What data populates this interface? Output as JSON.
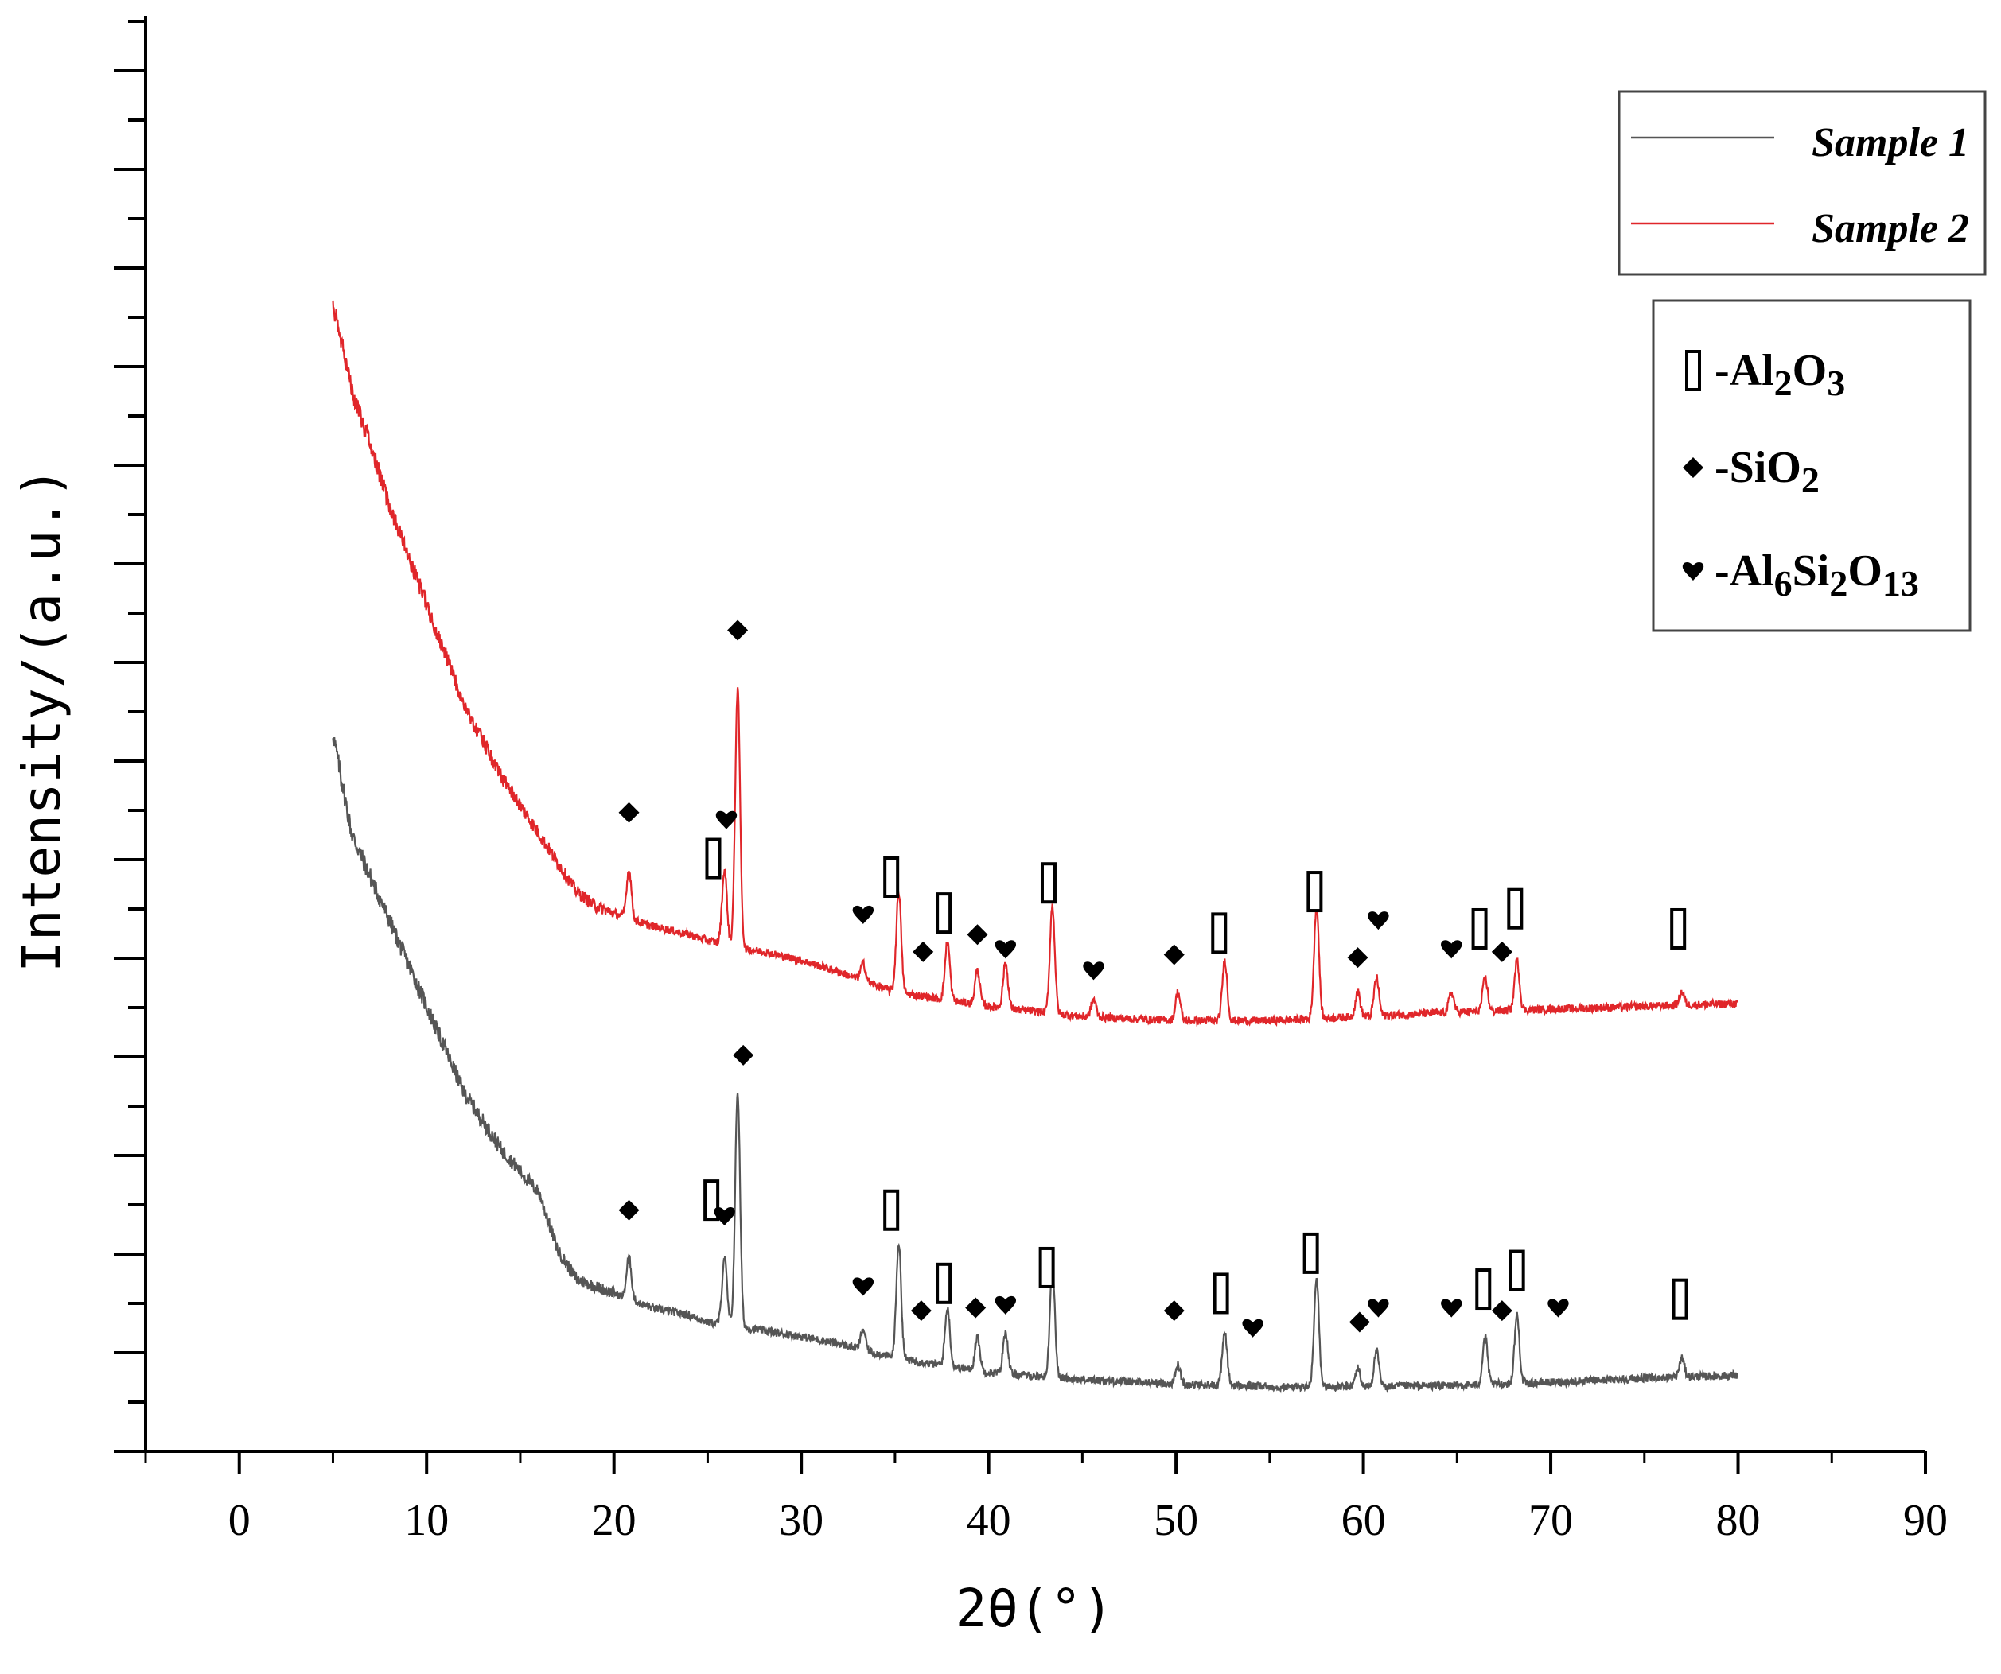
{
  "chart_data": {
    "type": "line",
    "xlabel": "2θ(°)",
    "ylabel": "Intensity/(a.u.)",
    "xlim": [
      -5,
      90
    ],
    "x_ticks": [
      0,
      10,
      20,
      30,
      40,
      50,
      60,
      70,
      80,
      90
    ],
    "y_tick_labels": "none",
    "ylim": [
      0,
      100
    ],
    "grid": false,
    "legend_position": "top-right",
    "series": [
      {
        "name": "Sample 1",
        "color": "#555555",
        "x": [
          5,
          6,
          8,
          10,
          12,
          14,
          16,
          17,
          18,
          19,
          20,
          21,
          22,
          24,
          25,
          26,
          27,
          28,
          30,
          32,
          35,
          40,
          45,
          50,
          55,
          60,
          65,
          70,
          75,
          80
        ],
        "y": [
          50,
          43,
          37,
          31,
          25,
          21,
          18,
          14,
          12,
          11.5,
          11,
          10.5,
          10,
          9.5,
          9,
          8.8,
          8.6,
          8.4,
          8,
          7.5,
          6.5,
          5.5,
          5,
          4.7,
          4.5,
          4.5,
          4.6,
          4.8,
          5.1,
          5.3
        ],
        "peaks": [
          {
            "x": 20.8,
            "y": 13.5
          },
          {
            "x": 25.9,
            "y": 13.5
          },
          {
            "x": 26.6,
            "y": 25
          },
          {
            "x": 33.3,
            "y": 8.5
          },
          {
            "x": 35.2,
            "y": 14.5
          },
          {
            "x": 37.8,
            "y": 10
          },
          {
            "x": 39.4,
            "y": 8
          },
          {
            "x": 40.9,
            "y": 8.3
          },
          {
            "x": 43.4,
            "y": 13
          },
          {
            "x": 50.1,
            "y": 6
          },
          {
            "x": 52.6,
            "y": 8.3
          },
          {
            "x": 57.5,
            "y": 12
          },
          {
            "x": 59.7,
            "y": 5.8
          },
          {
            "x": 60.7,
            "y": 7
          },
          {
            "x": 66.5,
            "y": 8
          },
          {
            "x": 68.2,
            "y": 9.5
          },
          {
            "x": 77.0,
            "y": 6.5
          }
        ]
      },
      {
        "name": "Sample 2",
        "color": "#e0262a",
        "x": [
          5,
          6,
          8,
          10,
          12,
          14,
          16,
          17,
          18,
          19,
          20,
          21,
          22,
          24,
          25,
          26,
          27,
          28,
          30,
          32,
          35,
          40,
          45,
          50,
          55,
          60,
          65,
          70,
          75,
          80
        ],
        "y": [
          80,
          74,
          66,
          59,
          52,
          47,
          43,
          41,
          39,
          38,
          37.5,
          37,
          36.6,
          36,
          35.6,
          35.3,
          35,
          34.8,
          34.2,
          33.4,
          32,
          31,
          30.3,
          30,
          30,
          30.3,
          30.6,
          30.8,
          31,
          31.2
        ],
        "peaks": [
          {
            "x": 20.8,
            "y": 40.5
          },
          {
            "x": 25.9,
            "y": 40.5
          },
          {
            "x": 26.6,
            "y": 53
          },
          {
            "x": 33.3,
            "y": 34
          },
          {
            "x": 35.2,
            "y": 39
          },
          {
            "x": 37.8,
            "y": 35.5
          },
          {
            "x": 39.4,
            "y": 33.5
          },
          {
            "x": 40.9,
            "y": 34
          },
          {
            "x": 43.4,
            "y": 38
          },
          {
            "x": 45.6,
            "y": 31.5
          },
          {
            "x": 50.1,
            "y": 32
          },
          {
            "x": 52.6,
            "y": 34.2
          },
          {
            "x": 57.5,
            "y": 38
          },
          {
            "x": 59.7,
            "y": 32
          },
          {
            "x": 60.7,
            "y": 33
          },
          {
            "x": 64.7,
            "y": 32
          },
          {
            "x": 66.5,
            "y": 33
          },
          {
            "x": 68.2,
            "y": 34.2
          },
          {
            "x": 77.0,
            "y": 32
          }
        ]
      }
    ],
    "phase_key": [
      {
        "marker": "rect",
        "label": "-Al",
        "sub": [
          "2",
          "3"
        ],
        "parts": [
          "-Al",
          "O"
        ]
      },
      {
        "marker": "diamond",
        "label": "-SiO",
        "sub": [
          "2"
        ],
        "parts": [
          "-SiO"
        ]
      },
      {
        "marker": "heart",
        "label": "-Al",
        "sub": [
          "6",
          "2",
          "13"
        ],
        "parts": [
          "-Al",
          "Si",
          "O"
        ]
      }
    ],
    "markers": {
      "sample2": [
        {
          "x": 20.8,
          "y": 44.5,
          "m": "diamond"
        },
        {
          "x": 25.3,
          "y": 41.3,
          "m": "rect"
        },
        {
          "x": 26.0,
          "y": 44.0,
          "m": "heart"
        },
        {
          "x": 26.6,
          "y": 57.2,
          "m": "diamond"
        },
        {
          "x": 33.3,
          "y": 37.4,
          "m": "heart"
        },
        {
          "x": 34.8,
          "y": 40.0,
          "m": "rect"
        },
        {
          "x": 37.6,
          "y": 37.5,
          "m": "rect"
        },
        {
          "x": 36.5,
          "y": 34.8,
          "m": "diamond"
        },
        {
          "x": 39.4,
          "y": 36.0,
          "m": "diamond"
        },
        {
          "x": 40.9,
          "y": 35.0,
          "m": "heart"
        },
        {
          "x": 43.2,
          "y": 39.6,
          "m": "rect"
        },
        {
          "x": 45.6,
          "y": 33.5,
          "m": "heart"
        },
        {
          "x": 49.9,
          "y": 34.6,
          "m": "diamond"
        },
        {
          "x": 52.3,
          "y": 36.1,
          "m": "rect"
        },
        {
          "x": 57.4,
          "y": 39.0,
          "m": "rect"
        },
        {
          "x": 59.7,
          "y": 34.4,
          "m": "diamond"
        },
        {
          "x": 60.8,
          "y": 37.0,
          "m": "heart"
        },
        {
          "x": 64.7,
          "y": 35.0,
          "m": "heart"
        },
        {
          "x": 66.2,
          "y": 36.4,
          "m": "rect"
        },
        {
          "x": 67.4,
          "y": 34.8,
          "m": "diamond"
        },
        {
          "x": 68.1,
          "y": 37.8,
          "m": "rect"
        },
        {
          "x": 76.8,
          "y": 36.4,
          "m": "rect"
        }
      ],
      "sample1": [
        {
          "x": 20.8,
          "y": 16.8,
          "m": "diamond"
        },
        {
          "x": 25.2,
          "y": 17.5,
          "m": "rect"
        },
        {
          "x": 25.9,
          "y": 16.4,
          "m": "heart"
        },
        {
          "x": 26.9,
          "y": 27.6,
          "m": "diamond"
        },
        {
          "x": 33.3,
          "y": 11.5,
          "m": "heart"
        },
        {
          "x": 34.8,
          "y": 16.8,
          "m": "rect"
        },
        {
          "x": 37.6,
          "y": 11.7,
          "m": "rect"
        },
        {
          "x": 36.4,
          "y": 9.8,
          "m": "diamond"
        },
        {
          "x": 39.3,
          "y": 10.0,
          "m": "diamond"
        },
        {
          "x": 40.9,
          "y": 10.2,
          "m": "heart"
        },
        {
          "x": 43.1,
          "y": 12.8,
          "m": "rect"
        },
        {
          "x": 49.9,
          "y": 9.8,
          "m": "diamond"
        },
        {
          "x": 52.4,
          "y": 11.0,
          "m": "rect"
        },
        {
          "x": 54.1,
          "y": 8.6,
          "m": "heart"
        },
        {
          "x": 57.2,
          "y": 13.8,
          "m": "rect"
        },
        {
          "x": 59.8,
          "y": 9.0,
          "m": "diamond"
        },
        {
          "x": 60.8,
          "y": 10.0,
          "m": "heart"
        },
        {
          "x": 64.7,
          "y": 10.0,
          "m": "heart"
        },
        {
          "x": 66.4,
          "y": 11.3,
          "m": "rect"
        },
        {
          "x": 67.4,
          "y": 9.8,
          "m": "diamond"
        },
        {
          "x": 68.2,
          "y": 12.6,
          "m": "rect"
        },
        {
          "x": 70.4,
          "y": 10.0,
          "m": "heart"
        },
        {
          "x": 76.9,
          "y": 10.6,
          "m": "rect"
        }
      ]
    }
  },
  "colors": {
    "sample1": "#555555",
    "sample2": "#e0262a",
    "axis": "#000000"
  }
}
